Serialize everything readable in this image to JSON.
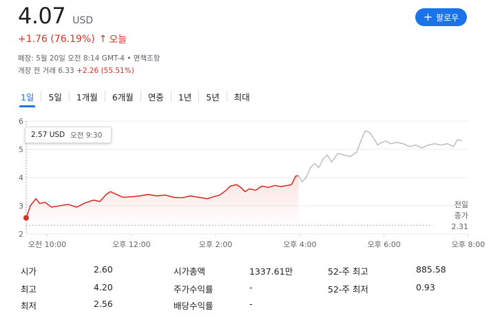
{
  "quote": {
    "price": "4.07",
    "currency": "USD",
    "change": "+1.76 (76.19%)",
    "change_arrow": "↑",
    "change_period": "오늘",
    "close_info": "폐장: 5월 20일 오전 8:14 GMT-4 • 면책조항",
    "premarket_label": "개장 전 거래",
    "premarket_price": "6.33",
    "premarket_change": "+2.26 (55.51%)",
    "accent_color": "#d93025"
  },
  "follow_button": {
    "icon": "plus-icon",
    "label": "팔로우"
  },
  "tabs": [
    {
      "label": "1일",
      "active": true
    },
    {
      "label": "5일"
    },
    {
      "label": "1개월"
    },
    {
      "label": "6개월"
    },
    {
      "label": "연중"
    },
    {
      "label": "1년"
    },
    {
      "label": "5년"
    },
    {
      "label": "최대"
    }
  ],
  "tooltip": {
    "price": "2.57 USD",
    "time": "오전 9:30"
  },
  "previous_close": {
    "label_line1": "전일",
    "label_line2": "종가",
    "value": "2.31"
  },
  "chart_data": {
    "type": "line",
    "y_ticks": [
      "2",
      "3",
      "4",
      "5",
      "6"
    ],
    "x_ticks": [
      "오전 10:00",
      "오후 12:00",
      "오후 2:00",
      "오후 4:00",
      "오후 6:00",
      "오후 8:00"
    ],
    "ylim": [
      2,
      6
    ],
    "previous_close": 2.31,
    "series": [
      {
        "session": "regular",
        "color": "#d93025",
        "points": [
          [
            9.5,
            2.57
          ],
          [
            9.6,
            3.0
          ],
          [
            9.73,
            3.25
          ],
          [
            9.82,
            3.08
          ],
          [
            9.95,
            3.12
          ],
          [
            10.1,
            2.95
          ],
          [
            10.3,
            3.0
          ],
          [
            10.5,
            3.05
          ],
          [
            10.7,
            2.95
          ],
          [
            10.9,
            3.1
          ],
          [
            11.1,
            3.2
          ],
          [
            11.25,
            3.15
          ],
          [
            11.4,
            3.4
          ],
          [
            11.5,
            3.5
          ],
          [
            11.65,
            3.4
          ],
          [
            11.8,
            3.3
          ],
          [
            12.0,
            3.32
          ],
          [
            12.2,
            3.35
          ],
          [
            12.4,
            3.4
          ],
          [
            12.6,
            3.35
          ],
          [
            12.8,
            3.38
          ],
          [
            13.0,
            3.3
          ],
          [
            13.2,
            3.28
          ],
          [
            13.4,
            3.35
          ],
          [
            13.6,
            3.3
          ],
          [
            13.8,
            3.25
          ],
          [
            13.95,
            3.32
          ],
          [
            14.1,
            3.38
          ],
          [
            14.25,
            3.55
          ],
          [
            14.35,
            3.7
          ],
          [
            14.5,
            3.75
          ],
          [
            14.6,
            3.65
          ],
          [
            14.7,
            3.5
          ],
          [
            14.8,
            3.6
          ],
          [
            14.95,
            3.55
          ],
          [
            15.1,
            3.7
          ],
          [
            15.25,
            3.65
          ],
          [
            15.4,
            3.72
          ],
          [
            15.55,
            3.68
          ],
          [
            15.7,
            3.72
          ],
          [
            15.8,
            3.75
          ],
          [
            15.85,
            3.9
          ],
          [
            15.9,
            4.05
          ],
          [
            15.97,
            4.07
          ]
        ]
      },
      {
        "session": "after-hours",
        "color": "#c0c0c0",
        "points": [
          [
            15.97,
            4.07
          ],
          [
            16.05,
            3.85
          ],
          [
            16.15,
            4.0
          ],
          [
            16.25,
            4.35
          ],
          [
            16.35,
            4.5
          ],
          [
            16.45,
            4.35
          ],
          [
            16.55,
            4.65
          ],
          [
            16.65,
            4.8
          ],
          [
            16.75,
            4.55
          ],
          [
            16.9,
            4.85
          ],
          [
            17.05,
            4.8
          ],
          [
            17.2,
            4.75
          ],
          [
            17.35,
            4.9
          ],
          [
            17.45,
            5.3
          ],
          [
            17.55,
            5.65
          ],
          [
            17.65,
            5.6
          ],
          [
            17.75,
            5.4
          ],
          [
            17.85,
            5.15
          ],
          [
            17.95,
            5.25
          ],
          [
            18.05,
            5.3
          ],
          [
            18.15,
            5.2
          ],
          [
            18.3,
            5.25
          ],
          [
            18.45,
            5.2
          ],
          [
            18.6,
            5.1
          ],
          [
            18.75,
            5.15
          ],
          [
            18.9,
            5.05
          ],
          [
            19.05,
            5.15
          ],
          [
            19.2,
            5.2
          ],
          [
            19.35,
            5.15
          ],
          [
            19.5,
            5.2
          ],
          [
            19.65,
            5.1
          ],
          [
            19.75,
            5.35
          ],
          [
            19.85,
            5.3
          ]
        ]
      }
    ],
    "grid": true
  },
  "stats": [
    {
      "label": "시가",
      "value": "2.60"
    },
    {
      "label": "최고",
      "value": "4.20"
    },
    {
      "label": "최저",
      "value": "2.56"
    },
    {
      "label": "시가총액",
      "value": "1337.61만"
    },
    {
      "label": "주가수익률",
      "value": "-"
    },
    {
      "label": "배당수익률",
      "value": "-"
    },
    {
      "label": "52-주 최고",
      "value": "885.58"
    },
    {
      "label": "52-주 최저",
      "value": "0.93"
    }
  ]
}
